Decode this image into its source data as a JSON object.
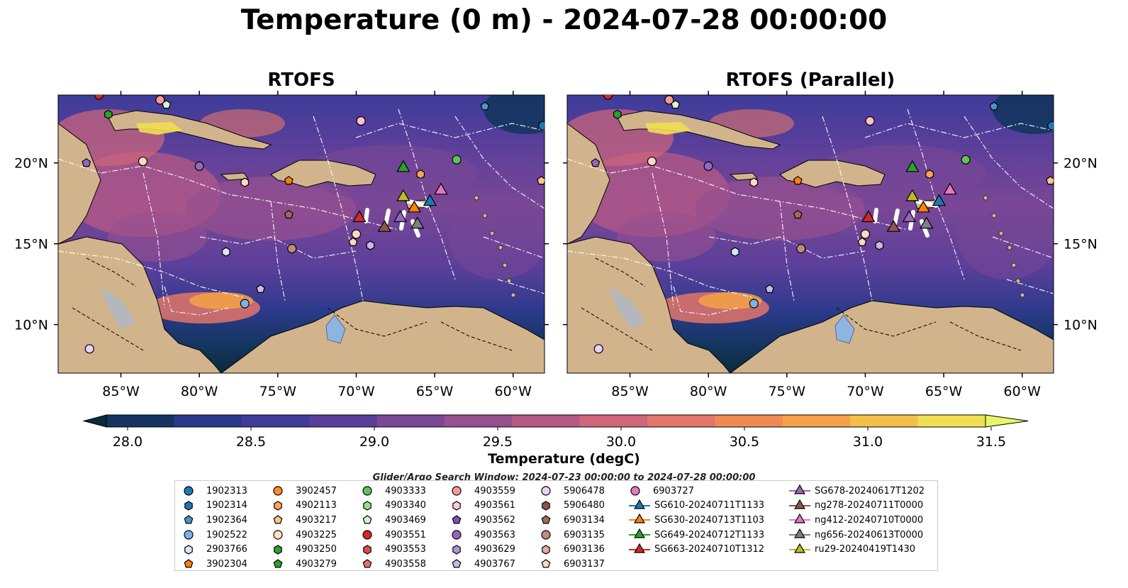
{
  "title": "Temperature (0 m) - 2024-07-28 00:00:00",
  "panels": [
    {
      "title": "RTOFS"
    },
    {
      "title": "RTOFS (Parallel)"
    }
  ],
  "axes": {
    "lon_ticks": [
      "85°W",
      "80°W",
      "75°W",
      "70°W",
      "65°W",
      "60°W"
    ],
    "lat_ticks": [
      "20°N",
      "15°N",
      "10°N"
    ],
    "lon_range": [
      -89,
      -58
    ],
    "lat_range": [
      7,
      24.2
    ]
  },
  "colorbar": {
    "label": "Temperature (degC)",
    "ticks": [
      "28.0",
      "28.5",
      "29.0",
      "29.5",
      "30.0",
      "30.5",
      "31.0",
      "31.5"
    ],
    "range": [
      28.0,
      31.5
    ],
    "extend": "both",
    "colors": [
      "#0b2a3a",
      "#14355f",
      "#2b3a8a",
      "#3e3c9a",
      "#5a3f9a",
      "#7a4796",
      "#97508f",
      "#b65a86",
      "#d0667a",
      "#e3766a",
      "#f08a55",
      "#f5a248",
      "#f4c04a",
      "#f0df52",
      "#e6f66a"
    ]
  },
  "legend": {
    "title": "Glider/Argo Search Window: 2024-07-23 00:00:00 to 2024-07-28 00:00:00",
    "columns": [
      [
        {
          "label": "1902313",
          "marker": "circle",
          "color": "#1f77b4"
        },
        {
          "label": "1902314",
          "marker": "hexagon",
          "color": "#1f77b4"
        },
        {
          "label": "1902364",
          "marker": "pentagon",
          "color": "#4c92c9"
        },
        {
          "label": "1902522",
          "marker": "circle",
          "color": "#7db3e3"
        },
        {
          "label": "2903766",
          "marker": "hexagon",
          "color": "#d6e8f6"
        },
        {
          "label": "3902304",
          "marker": "pentagon",
          "color": "#ff7f0e"
        }
      ],
      [
        {
          "label": "3902457",
          "marker": "circle",
          "color": "#ff8c2a"
        },
        {
          "label": "4902113",
          "marker": "hexagon",
          "color": "#ffa558"
        },
        {
          "label": "4903217",
          "marker": "pentagon",
          "color": "#ffc48a"
        },
        {
          "label": "4903225",
          "marker": "circle",
          "color": "#ffe2c4"
        },
        {
          "label": "4903250",
          "marker": "hexagon",
          "color": "#2ca02c"
        },
        {
          "label": "4903279",
          "marker": "pentagon",
          "color": "#2ca02c"
        }
      ],
      [
        {
          "label": "4903333",
          "marker": "circle",
          "color": "#5cc35c"
        },
        {
          "label": "4903340",
          "marker": "hexagon",
          "color": "#98df8a"
        },
        {
          "label": "4903469",
          "marker": "pentagon",
          "color": "#d6f5cf"
        },
        {
          "label": "4903551",
          "marker": "circle",
          "color": "#d62728"
        },
        {
          "label": "4903553",
          "marker": "hexagon",
          "color": "#e04a4b"
        },
        {
          "label": "4903558",
          "marker": "pentagon",
          "color": "#ec6e6f"
        }
      ],
      [
        {
          "label": "4903559",
          "marker": "circle",
          "color": "#ff9896"
        },
        {
          "label": "4903561",
          "marker": "hexagon",
          "color": "#ffcfcf"
        },
        {
          "label": "4903562",
          "marker": "pentagon",
          "color": "#7b52b8"
        },
        {
          "label": "4903563",
          "marker": "circle",
          "color": "#9467bd"
        },
        {
          "label": "4903629",
          "marker": "hexagon",
          "color": "#b094d6"
        },
        {
          "label": "4903767",
          "marker": "pentagon",
          "color": "#cbb8e6"
        }
      ],
      [
        {
          "label": "5906478",
          "marker": "circle",
          "color": "#e6d3f3"
        },
        {
          "label": "5906480",
          "marker": "hexagon",
          "color": "#8c564b"
        },
        {
          "label": "6903134",
          "marker": "pentagon",
          "color": "#a0695c"
        },
        {
          "label": "6903135",
          "marker": "circle",
          "color": "#c08a7c"
        },
        {
          "label": "6903136",
          "marker": "hexagon",
          "color": "#e0aa9c"
        },
        {
          "label": "6903137",
          "marker": "pentagon",
          "color": "#ffd7c8"
        }
      ],
      [
        {
          "label": "6903727",
          "marker": "circle",
          "color": "#e377c2"
        },
        {
          "label": "SG610-20240711T1133",
          "marker": "triangle",
          "color": "#1f77b4"
        },
        {
          "label": "SG630-20240713T1103",
          "marker": "triangle",
          "color": "#ff7f0e"
        },
        {
          "label": "SG649-20240712T1133",
          "marker": "triangle",
          "color": "#2ca02c"
        },
        {
          "label": "SG663-20240710T1312",
          "marker": "triangle",
          "color": "#d62728"
        }
      ],
      [
        {
          "label": "SG678-20240617T1202",
          "marker": "triangle",
          "color": "#9467bd"
        },
        {
          "label": "ng278-20240711T0000",
          "marker": "triangle",
          "color": "#8c564b"
        },
        {
          "label": "ng412-20240710T0000",
          "marker": "triangle",
          "color": "#e377c2"
        },
        {
          "label": "ng656-20240613T0000",
          "marker": "triangle",
          "color": "#7f7f7f"
        },
        {
          "label": "ru29-20240419T1430",
          "marker": "triangle",
          "color": "#bcbd22"
        }
      ]
    ]
  },
  "gliders": [
    {
      "id": "SG610-20240711T1133",
      "lon": -65.3,
      "lat": 17.5,
      "color": "#1f77b4"
    },
    {
      "id": "SG630-20240713T1103",
      "lon": -66.3,
      "lat": 17.1,
      "color": "#ff7f0e"
    },
    {
      "id": "SG649-20240712T1133",
      "lon": -67.0,
      "lat": 19.6,
      "color": "#2ca02c"
    },
    {
      "id": "SG663-20240710T1312",
      "lon": -69.8,
      "lat": 16.5,
      "color": "#d62728"
    },
    {
      "id": "SG678-20240617T1202",
      "lon": -67.2,
      "lat": 16.5,
      "color": "#9467bd"
    },
    {
      "id": "ng278-20240711T0000",
      "lon": -68.2,
      "lat": 15.9,
      "color": "#8c564b"
    },
    {
      "id": "ng412-20240710T0000",
      "lon": -64.6,
      "lat": 18.2,
      "color": "#e377c2"
    },
    {
      "id": "ng656-20240613T0000",
      "lon": -66.1,
      "lat": 16.1,
      "color": "#7f7f7f"
    },
    {
      "id": "ru29-20240419T1430",
      "lon": -67.0,
      "lat": 17.8,
      "color": "#bcbd22"
    }
  ],
  "floats": [
    {
      "lon": -86.4,
      "lat": 24.2,
      "marker": "circle",
      "color": "#d62728"
    },
    {
      "lon": -85.8,
      "lat": 23.0,
      "marker": "hexagon",
      "color": "#2ca02c"
    },
    {
      "lon": -82.5,
      "lat": 23.9,
      "marker": "circle",
      "color": "#ff9896"
    },
    {
      "lon": -82.1,
      "lat": 23.6,
      "marker": "pentagon",
      "color": "#d6f5cf"
    },
    {
      "lon": -69.7,
      "lat": 22.6,
      "marker": "circle",
      "color": "#ffc0cb"
    },
    {
      "lon": -61.8,
      "lat": 23.5,
      "marker": "pentagon",
      "color": "#4c92c9"
    },
    {
      "lon": -58.1,
      "lat": 22.3,
      "marker": "circle",
      "color": "#1f77b4"
    },
    {
      "lon": -87.2,
      "lat": 20.0,
      "marker": "pentagon",
      "color": "#9467bd"
    },
    {
      "lon": -83.6,
      "lat": 20.1,
      "marker": "circle",
      "color": "#ffd7c8"
    },
    {
      "lon": -80.0,
      "lat": 19.8,
      "marker": "circle",
      "color": "#9467bd"
    },
    {
      "lon": -77.1,
      "lat": 18.8,
      "marker": "hexagon",
      "color": "#ffd7c8"
    },
    {
      "lon": -74.3,
      "lat": 18.9,
      "marker": "pentagon",
      "color": "#ff7f0e"
    },
    {
      "lon": -63.6,
      "lat": 20.2,
      "marker": "circle",
      "color": "#5cc35c"
    },
    {
      "lon": -65.9,
      "lat": 19.3,
      "marker": "hexagon",
      "color": "#ffa558"
    },
    {
      "lon": -58.2,
      "lat": 18.9,
      "marker": "pentagon",
      "color": "#ffc48a"
    },
    {
      "lon": -74.3,
      "lat": 16.8,
      "marker": "pentagon",
      "color": "#a0695c"
    },
    {
      "lon": -70.0,
      "lat": 15.6,
      "marker": "circle",
      "color": "#ffd7c8"
    },
    {
      "lon": -70.2,
      "lat": 15.1,
      "marker": "pentagon",
      "color": "#ffd7c8"
    },
    {
      "lon": -69.1,
      "lat": 14.9,
      "marker": "hexagon",
      "color": "#cbb8e6"
    },
    {
      "lon": -74.1,
      "lat": 14.7,
      "marker": "circle",
      "color": "#c08a7c"
    },
    {
      "lon": -78.3,
      "lat": 14.5,
      "marker": "hexagon",
      "color": "#d6e8f6"
    },
    {
      "lon": -76.1,
      "lat": 12.2,
      "marker": "pentagon",
      "color": "#cbb8e6"
    },
    {
      "lon": -77.1,
      "lat": 11.3,
      "marker": "circle",
      "color": "#7db3e3"
    },
    {
      "lon": -87.0,
      "lat": 8.5,
      "marker": "circle",
      "color": "#e6d3f3"
    }
  ]
}
